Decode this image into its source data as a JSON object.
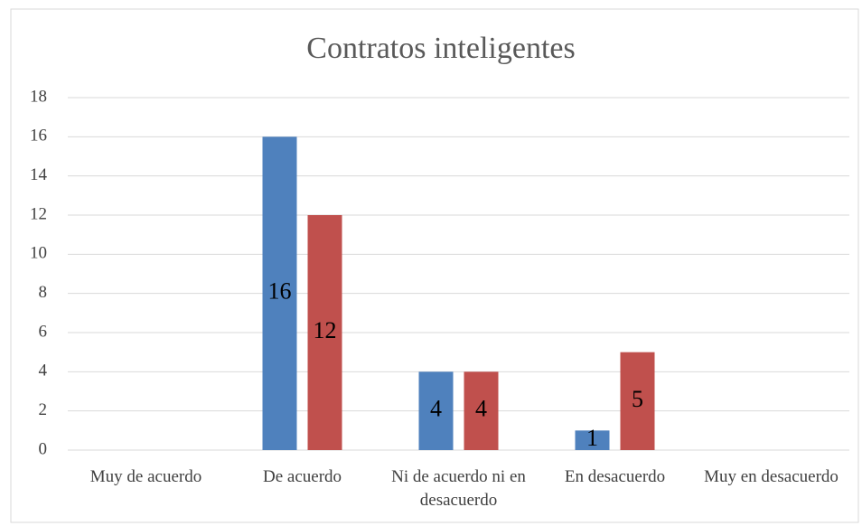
{
  "chart_data": {
    "type": "bar",
    "title": "Contratos inteligentes",
    "categories": [
      "Muy de acuerdo",
      "De acuerdo",
      "Ni de acuerdo ni en desacuerdo",
      "En desacuerdo",
      "Muy en desacuerdo"
    ],
    "series": [
      {
        "color": "#4f81bd",
        "values": [
          0,
          16,
          4,
          1,
          0
        ]
      },
      {
        "color": "#c0504d",
        "values": [
          0,
          12,
          4,
          5,
          0
        ]
      }
    ],
    "ylim": [
      0,
      18
    ],
    "yticks": [
      0,
      2,
      4,
      6,
      8,
      10,
      12,
      14,
      16,
      18
    ],
    "grid": true
  }
}
